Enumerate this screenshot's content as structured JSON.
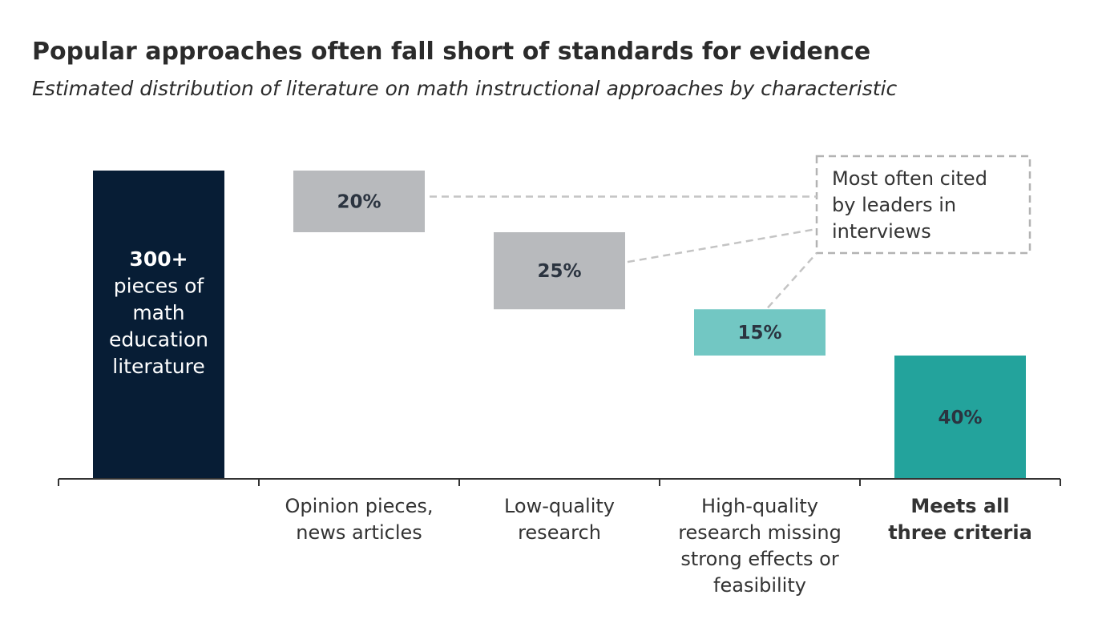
{
  "title": "Popular approaches often fall short of standards for evidence",
  "subtitle": "Estimated distribution of literature on math instructional approaches by characteristic",
  "chart_data": {
    "type": "bar",
    "subtype": "waterfall",
    "title": "Popular approaches often fall short of standards for evidence",
    "subtitle": "Estimated distribution of literature on math instructional approaches by characteristic",
    "xlabel": "",
    "ylabel": "",
    "ylim": [
      0,
      100
    ],
    "grid": false,
    "total": {
      "value": 100,
      "label_lines": [
        "300+",
        "pieces of",
        "math",
        "education",
        "literature"
      ],
      "color": "#071d35"
    },
    "categories": [
      "",
      "Opinion pieces, news articles",
      "Low-quality research",
      "High-quality research missing strong effects or feasibility",
      "Meets all three criteria"
    ],
    "category_label_lines": [
      [],
      [
        "Opinion pieces,",
        "news articles"
      ],
      [
        "Low-quality",
        "research"
      ],
      [
        "High-quality",
        "research missing",
        "strong effects or",
        "feasibility"
      ],
      [
        "Meets all",
        "three criteria"
      ]
    ],
    "category_bold": [
      false,
      false,
      false,
      false,
      true
    ],
    "segments": [
      {
        "category": "Opinion pieces, news articles",
        "value": 20,
        "start": 80,
        "end": 100,
        "label": "20%",
        "color": "#b8babd"
      },
      {
        "category": "Low-quality research",
        "value": 25,
        "start": 55,
        "end": 80,
        "label": "25%",
        "color": "#b8babd"
      },
      {
        "category": "High-quality research missing strong effects or feasibility",
        "value": 15,
        "start": 40,
        "end": 55,
        "label": "15%",
        "color": "#72c7c3"
      },
      {
        "category": "Meets all three criteria",
        "value": 40,
        "start": 0,
        "end": 40,
        "label": "40%",
        "color": "#23a39c"
      }
    ],
    "annotation": {
      "lines": [
        "Most often cited",
        "by leaders in",
        "interviews"
      ],
      "points_to": [
        "20%",
        "25%",
        "15%"
      ]
    }
  }
}
